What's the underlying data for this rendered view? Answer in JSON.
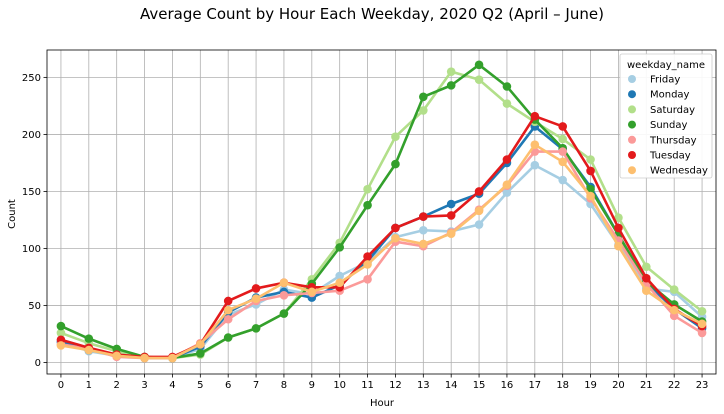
{
  "chart_data": {
    "type": "line",
    "title": "Average Count by Hour Each Weekday, 2020 Q2 (April – June)",
    "xlabel": "Hour",
    "ylabel": "Count",
    "ylim": [
      -10,
      274
    ],
    "yticks": [
      0,
      50,
      100,
      150,
      200,
      250
    ],
    "grid": true,
    "legend_title": "weekday_name",
    "legend_position": "top-right",
    "x": [
      0,
      1,
      2,
      3,
      4,
      5,
      6,
      7,
      8,
      9,
      10,
      11,
      12,
      13,
      14,
      15,
      16,
      17,
      18,
      19,
      20,
      21,
      22,
      23
    ],
    "series": [
      {
        "name": "Friday",
        "color": "#a6cee3",
        "values": [
          18,
          10,
          6,
          4,
          4,
          12,
          42,
          51,
          64,
          60,
          76,
          88,
          110,
          116,
          115,
          121,
          149,
          173,
          160,
          139,
          103,
          65,
          62,
          40
        ]
      },
      {
        "name": "Monday",
        "color": "#1f78b4",
        "values": [
          18,
          11,
          7,
          4,
          4,
          14,
          44,
          57,
          62,
          57,
          68,
          89,
          118,
          128,
          139,
          148,
          175,
          207,
          187,
          154,
          112,
          70,
          47,
          30
        ]
      },
      {
        "name": "Saturday",
        "color": "#b2df8a",
        "values": [
          26,
          17,
          10,
          5,
          4,
          7,
          22,
          30,
          43,
          73,
          105,
          152,
          198,
          221,
          255,
          248,
          227,
          211,
          196,
          178,
          127,
          84,
          64,
          45
        ]
      },
      {
        "name": "Sunday",
        "color": "#33a02c",
        "values": [
          32,
          21,
          12,
          5,
          4,
          8,
          22,
          30,
          43,
          69,
          101,
          138,
          174,
          233,
          243,
          261,
          242,
          213,
          188,
          152,
          112,
          71,
          51,
          36
        ]
      },
      {
        "name": "Thursday",
        "color": "#fb9a99",
        "values": [
          16,
          12,
          5,
          4,
          4,
          17,
          38,
          54,
          59,
          61,
          63,
          73,
          106,
          102,
          114,
          134,
          155,
          185,
          185,
          144,
          107,
          69,
          41,
          26
        ]
      },
      {
        "name": "Tuesday",
        "color": "#e31a1c",
        "values": [
          20,
          13,
          7,
          5,
          5,
          16,
          54,
          65,
          70,
          66,
          66,
          93,
          118,
          128,
          129,
          150,
          178,
          216,
          207,
          168,
          118,
          74,
          47,
          32
        ]
      },
      {
        "name": "Wednesday",
        "color": "#fdbf6f",
        "values": [
          15,
          11,
          6,
          4,
          4,
          16,
          46,
          56,
          70,
          62,
          70,
          86,
          109,
          104,
          113,
          133,
          156,
          191,
          176,
          146,
          102,
          63,
          46,
          34
        ]
      }
    ]
  }
}
